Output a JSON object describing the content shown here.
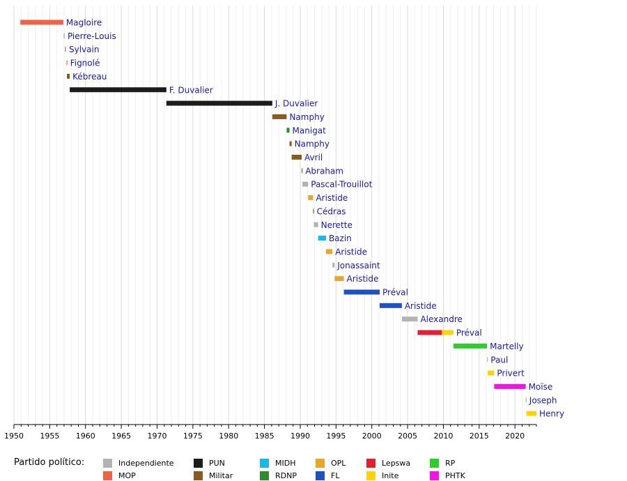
{
  "chart_data": {
    "type": "bar",
    "orientation": "horizontal-timeline",
    "title": "",
    "xlabel": "",
    "ylabel": "",
    "xlim": [
      1950,
      2023
    ],
    "x_ticks": [
      1950,
      1955,
      1960,
      1965,
      1970,
      1975,
      1980,
      1985,
      1990,
      1995,
      2000,
      2005,
      2010,
      2015,
      2020
    ],
    "grid": true,
    "label_color": "#1a1aa6",
    "parties": {
      "Independiente": "#b3b3b3",
      "MOP": "#f26046",
      "PUN": "#1c1c1c",
      "Militar": "#8b5a1e",
      "MIDH": "#1ab8e6",
      "RDNP": "#2e8b2e",
      "OPL": "#e8a72a",
      "FL": "#1e50c8",
      "Lepswa": "#e61e32",
      "Inite": "#ffd20a",
      "RP": "#2ecc2e",
      "PHTK": "#f514e6"
    },
    "terms": [
      {
        "name": "Magloire",
        "segments": [
          {
            "start": 1950.9,
            "end": 1956.9,
            "party": "MOP"
          }
        ]
      },
      {
        "name": "Pierre-Louis",
        "segments": [
          {
            "start": 1956.95,
            "end": 1957.1,
            "party": "Independiente"
          }
        ]
      },
      {
        "name": "Sylvain",
        "segments": [
          {
            "start": 1957.1,
            "end": 1957.3,
            "party": "Independiente"
          }
        ]
      },
      {
        "name": "Fignolé",
        "segments": [
          {
            "start": 1957.35,
            "end": 1957.4,
            "party": "MOP"
          }
        ]
      },
      {
        "name": "Kébreau",
        "segments": [
          {
            "start": 1957.4,
            "end": 1957.8,
            "party": "Militar"
          }
        ]
      },
      {
        "name": "F. Duvalier",
        "segments": [
          {
            "start": 1957.8,
            "end": 1971.3,
            "party": "PUN"
          }
        ]
      },
      {
        "name": "J. Duvalier",
        "segments": [
          {
            "start": 1971.3,
            "end": 1986.1,
            "party": "PUN"
          }
        ]
      },
      {
        "name": "Namphy",
        "segments": [
          {
            "start": 1986.1,
            "end": 1988.1,
            "party": "Militar"
          }
        ]
      },
      {
        "name": "Manigat",
        "segments": [
          {
            "start": 1988.1,
            "end": 1988.5,
            "party": "RDNP"
          }
        ]
      },
      {
        "name": "Namphy",
        "segments": [
          {
            "start": 1988.5,
            "end": 1988.8,
            "party": "Militar"
          }
        ]
      },
      {
        "name": "Avril",
        "segments": [
          {
            "start": 1988.8,
            "end": 1990.2,
            "party": "Militar"
          }
        ]
      },
      {
        "name": "Abraham",
        "segments": [
          {
            "start": 1990.2,
            "end": 1990.3,
            "party": "Militar"
          }
        ]
      },
      {
        "name": "Pascal-Trouillot",
        "segments": [
          {
            "start": 1990.3,
            "end": 1991.1,
            "party": "Independiente"
          }
        ]
      },
      {
        "name": "Aristide",
        "segments": [
          {
            "start": 1991.1,
            "end": 1991.8,
            "party": "OPL"
          }
        ]
      },
      {
        "name": "Cédras",
        "segments": [
          {
            "start": 1991.8,
            "end": 1991.9,
            "party": "Militar"
          }
        ]
      },
      {
        "name": "Nerette",
        "segments": [
          {
            "start": 1991.9,
            "end": 1992.5,
            "party": "Independiente"
          }
        ]
      },
      {
        "name": "Bazin",
        "segments": [
          {
            "start": 1992.5,
            "end": 1993.6,
            "party": "MIDH"
          }
        ]
      },
      {
        "name": "Aristide",
        "segments": [
          {
            "start": 1993.6,
            "end": 1994.5,
            "party": "OPL"
          }
        ]
      },
      {
        "name": "Jonassaint",
        "segments": [
          {
            "start": 1994.5,
            "end": 1994.8,
            "party": "Independiente"
          }
        ]
      },
      {
        "name": "Aristide",
        "segments": [
          {
            "start": 1994.8,
            "end": 1996.1,
            "party": "OPL"
          }
        ]
      },
      {
        "name": "Préval",
        "segments": [
          {
            "start": 1996.1,
            "end": 2001.1,
            "party": "FL"
          }
        ]
      },
      {
        "name": "Aristide",
        "segments": [
          {
            "start": 2001.1,
            "end": 2004.2,
            "party": "FL"
          }
        ]
      },
      {
        "name": "Alexandre",
        "segments": [
          {
            "start": 2004.2,
            "end": 2006.4,
            "party": "Independiente"
          }
        ]
      },
      {
        "name": "Préval",
        "segments": [
          {
            "start": 2006.4,
            "end": 2009.8,
            "party": "Lepswa"
          },
          {
            "start": 2009.8,
            "end": 2011.4,
            "party": "Inite"
          }
        ]
      },
      {
        "name": "Martelly",
        "segments": [
          {
            "start": 2011.4,
            "end": 2016.1,
            "party": "RP"
          }
        ]
      },
      {
        "name": "Paul",
        "segments": [
          {
            "start": 2016.1,
            "end": 2016.2,
            "party": "Independiente"
          }
        ]
      },
      {
        "name": "Privert",
        "segments": [
          {
            "start": 2016.2,
            "end": 2017.1,
            "party": "Inite"
          }
        ]
      },
      {
        "name": "Moïse",
        "segments": [
          {
            "start": 2017.1,
            "end": 2021.5,
            "party": "PHTK"
          }
        ]
      },
      {
        "name": "Joseph",
        "segments": [
          {
            "start": 2021.5,
            "end": 2021.6,
            "party": "Independiente"
          }
        ]
      },
      {
        "name": "Henry",
        "segments": [
          {
            "start": 2021.6,
            "end": 2023.0,
            "party": "Inite"
          }
        ]
      }
    ]
  },
  "legend": {
    "title": "Partido político:",
    "items": [
      {
        "label": "Independiente",
        "party": "Independiente"
      },
      {
        "label": "MOP",
        "party": "MOP"
      },
      {
        "label": "PUN",
        "party": "PUN"
      },
      {
        "label": "Militar",
        "party": "Militar"
      },
      {
        "label": "MIDH",
        "party": "MIDH"
      },
      {
        "label": "RDNP",
        "party": "RDNP"
      },
      {
        "label": "OPL",
        "party": "OPL"
      },
      {
        "label": "FL",
        "party": "FL"
      },
      {
        "label": "Lepswa",
        "party": "Lepswa"
      },
      {
        "label": "Inite",
        "party": "Inite"
      },
      {
        "label": "RP",
        "party": "RP"
      },
      {
        "label": "PHTK",
        "party": "PHTK"
      }
    ]
  }
}
